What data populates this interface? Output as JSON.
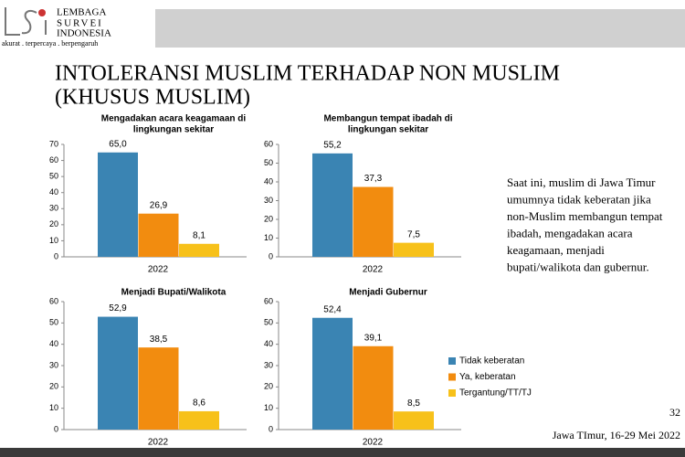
{
  "logo": {
    "lines": [
      "LEMBAGA",
      "SURVEI",
      "INDONESIA"
    ],
    "tagline": "akurat . terpercaya . berpengaruh"
  },
  "title": [
    "INTOLERANSI MUSLIM TERHADAP NON MUSLIM",
    "(KHUSUS MUSLIM)"
  ],
  "legend": {
    "series": [
      {
        "name": "Tidak keberatan",
        "color": "#3a84b3"
      },
      {
        "name": "Ya, keberatan",
        "color": "#f28c0f"
      },
      {
        "name": "Tergantung/TT/TJ",
        "color": "#f7c11a"
      }
    ]
  },
  "chart_data": [
    {
      "type": "bar",
      "title": [
        "Mengadakan acara keagamaan di",
        "lingkungan sekitar"
      ],
      "categories": [
        "2022"
      ],
      "series": [
        {
          "values": [
            65.0
          ],
          "value_labels": [
            "65,0"
          ]
        },
        {
          "values": [
            26.9
          ],
          "value_labels": [
            "26,9"
          ]
        },
        {
          "values": [
            8.1
          ],
          "value_labels": [
            "8,1"
          ]
        }
      ],
      "ylim": [
        0,
        70
      ],
      "yticks": [
        0,
        10,
        20,
        30,
        40,
        50,
        60,
        70
      ]
    },
    {
      "type": "bar",
      "title": [
        "Membangun tempat ibadah di",
        "lingkungan sekitar"
      ],
      "categories": [
        "2022"
      ],
      "series": [
        {
          "values": [
            55.2
          ],
          "value_labels": [
            "55,2"
          ]
        },
        {
          "values": [
            37.3
          ],
          "value_labels": [
            "37,3"
          ]
        },
        {
          "values": [
            7.5
          ],
          "value_labels": [
            "7,5"
          ]
        }
      ],
      "ylim": [
        0,
        60
      ],
      "yticks": [
        0,
        10,
        20,
        30,
        40,
        50,
        60
      ]
    },
    {
      "type": "bar",
      "title": [
        "Menjadi Bupati/Walikota"
      ],
      "categories": [
        "2022"
      ],
      "series": [
        {
          "values": [
            52.9
          ],
          "value_labels": [
            "52,9"
          ]
        },
        {
          "values": [
            38.5
          ],
          "value_labels": [
            "38,5"
          ]
        },
        {
          "values": [
            8.6
          ],
          "value_labels": [
            "8,6"
          ]
        }
      ],
      "ylim": [
        0,
        60
      ],
      "yticks": [
        0,
        10,
        20,
        30,
        40,
        50,
        60
      ]
    },
    {
      "type": "bar",
      "title": [
        "Menjadi Gubernur"
      ],
      "categories": [
        "2022"
      ],
      "series": [
        {
          "values": [
            52.4
          ],
          "value_labels": [
            "52,4"
          ]
        },
        {
          "values": [
            39.1
          ],
          "value_labels": [
            "39,1"
          ]
        },
        {
          "values": [
            8.5
          ],
          "value_labels": [
            "8,5"
          ]
        }
      ],
      "ylim": [
        0,
        60
      ],
      "yticks": [
        0,
        10,
        20,
        30,
        40,
        50,
        60
      ]
    }
  ],
  "text": [
    "Saat ini, muslim di Jawa Timur",
    "umumnya tidak keberatan jika",
    "non-Muslim membangun tempat",
    "ibadah, mengadakan acara",
    "keagamaan, menjadi",
    "bupati/walikota dan gubernur."
  ],
  "page_number": "32",
  "footer": "Jawa TImur, 16-29 Mei 2022"
}
